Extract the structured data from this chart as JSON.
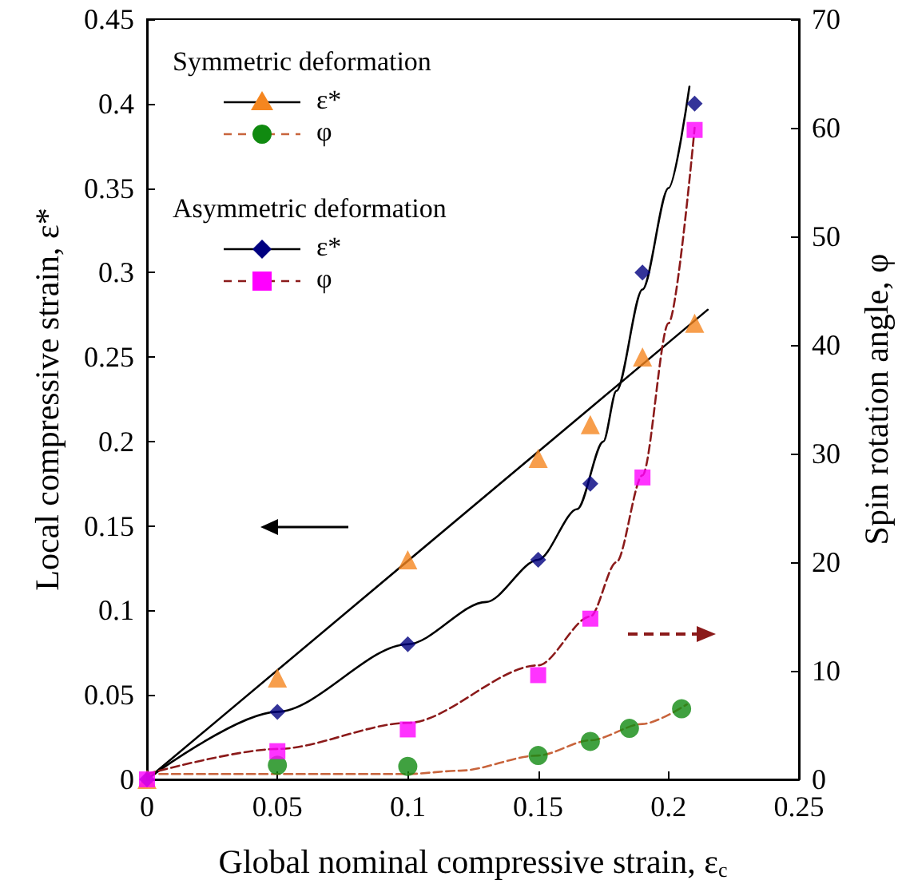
{
  "chart_data": {
    "type": "scatter",
    "xlabel": "Global nominal compressive strain, ε$_{c}$",
    "ylabel": "Local compressive strain, ε*",
    "y2label": "Spin rotation angle, φ",
    "xlim": [
      0,
      0.25
    ],
    "xticks": [
      0,
      0.05,
      0.1,
      0.15,
      0.2,
      0.25
    ],
    "ylim": [
      0,
      0.45
    ],
    "yticks": [
      0,
      0.05,
      0.1,
      0.15,
      0.2,
      0.25,
      0.3,
      0.35,
      0.4,
      0.45
    ],
    "y2lim": [
      0,
      70
    ],
    "y2ticks": [
      0,
      10,
      20,
      30,
      40,
      50,
      60,
      70
    ],
    "legend": "top left",
    "grid": false,
    "annotations": [
      "Symmetric deformation",
      "Asymmetric deformation"
    ],
    "series": [
      {
        "name": "ε*",
        "marker": "triangle",
        "color": "#f5861f",
        "x": [
          0,
          0.05,
          0.1,
          0.15,
          0.17,
          0.19,
          0.21
        ],
        "values": [
          0,
          0.06,
          0.13,
          0.19,
          0.21,
          0.25,
          0.27
        ]
      },
      {
        "type": "line",
        "marker": "none",
        "line_style": "solid",
        "color": "#000000",
        "x": [
          0,
          0.215
        ],
        "values": [
          0,
          0.278
        ]
      },
      {
        "name": "φ",
        "axis": "y2",
        "marker": "circle",
        "color": "#108a10",
        "x": [
          0.05,
          0.1,
          0.15,
          0.17,
          0.185,
          0.205
        ],
        "values": [
          1.3,
          1.2,
          2.2,
          3.5,
          4.7,
          6.5
        ]
      },
      {
        "type": "line",
        "axis": "y2",
        "marker": "none",
        "line_style": "dashed",
        "color": "#c8643c",
        "x": [
          0,
          0.05,
          0.1,
          0.12,
          0.15,
          0.17,
          0.19,
          0.207
        ],
        "values": [
          0.5,
          0.5,
          0.5,
          0.8,
          2.2,
          3.6,
          5.1,
          6.9
        ]
      },
      {
        "name": "ε*",
        "marker": "diamond",
        "color": "#000080",
        "x": [
          0,
          0.05,
          0.1,
          0.15,
          0.17,
          0.19,
          0.21
        ],
        "values": [
          0,
          0.04,
          0.08,
          0.13,
          0.175,
          0.3,
          0.4
        ]
      },
      {
        "type": "line",
        "marker": "none",
        "line_style": "solid",
        "color": "#000000",
        "x": [
          0,
          0.05,
          0.1,
          0.13,
          0.15,
          0.165,
          0.175,
          0.18,
          0.19,
          0.2,
          0.208
        ],
        "values": [
          0,
          0.04,
          0.08,
          0.105,
          0.13,
          0.16,
          0.2,
          0.23,
          0.29,
          0.35,
          0.41
        ]
      },
      {
        "name": "φ",
        "axis": "y2",
        "marker": "square",
        "color": "#ff00ff",
        "x": [
          0,
          0.05,
          0.1,
          0.15,
          0.17,
          0.19,
          0.21
        ],
        "values": [
          0,
          2.6,
          4.6,
          9.6,
          14.8,
          27.8,
          59.8
        ]
      },
      {
        "type": "line",
        "axis": "y2",
        "marker": "none",
        "line_style": "dashed",
        "color": "#8b1a1a",
        "x": [
          0,
          0.05,
          0.1,
          0.15,
          0.17,
          0.18,
          0.19,
          0.2,
          0.21
        ],
        "values": [
          0.5,
          2.8,
          5.2,
          10.5,
          15,
          20,
          28,
          42,
          60
        ]
      }
    ]
  }
}
